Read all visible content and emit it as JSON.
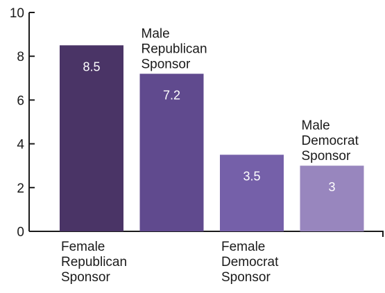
{
  "chart_data": {
    "type": "bar",
    "categories": [
      [
        "Female",
        "Republican",
        "Sponsor"
      ],
      [
        "Male",
        "Republican",
        "Sponsor"
      ],
      [
        "Female",
        "Democrat",
        "Sponsor"
      ],
      [
        "Male",
        "Democrat",
        "Sponsor"
      ]
    ],
    "category_label_position": [
      "below",
      "above",
      "below",
      "above"
    ],
    "values": [
      8.5,
      7.2,
      3.5,
      3
    ],
    "value_labels": [
      "8.5",
      "7.2",
      "3.5",
      "3"
    ],
    "colors": [
      "#4a3466",
      "#604a8e",
      "#7560a9",
      "#9886be"
    ],
    "ylim": [
      0,
      10
    ],
    "yticks": [
      "0",
      "2",
      "4",
      "6",
      "8",
      "10"
    ],
    "title": "",
    "xlabel": "",
    "ylabel": "",
    "grid": false,
    "legend": "none"
  }
}
